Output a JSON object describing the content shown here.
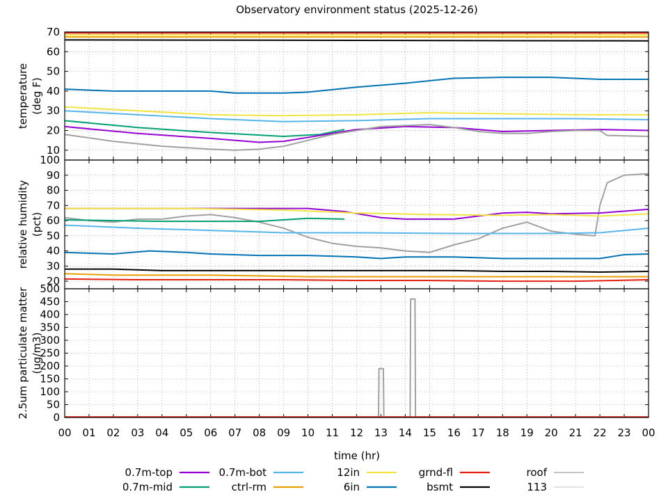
{
  "chart_data": {
    "title": "Observatory environment status (2025-12-26)",
    "xlabel": "time (hr)",
    "x_tick_labels": [
      "00",
      "01",
      "02",
      "03",
      "04",
      "05",
      "06",
      "07",
      "08",
      "09",
      "10",
      "11",
      "12",
      "13",
      "14",
      "15",
      "16",
      "17",
      "18",
      "19",
      "20",
      "21",
      "22",
      "23",
      "00"
    ],
    "xlim": [
      0,
      24
    ],
    "grid": true,
    "legend_position": "bottom",
    "legend": [
      {
        "name": "0.7m-top",
        "color": "#9400D3"
      },
      {
        "name": "0.7m-bot",
        "color": "#56B4E9"
      },
      {
        "name": "12in",
        "color": "#F0E442"
      },
      {
        "name": "grnd-fl",
        "color": "#E51E10"
      },
      {
        "name": "roof",
        "color": "#A0A0A0"
      },
      {
        "name": "0.7m-mid",
        "color": "#009E73"
      },
      {
        "name": "ctrl-rm",
        "color": "#E69F00"
      },
      {
        "name": "6in",
        "color": "#0072B2"
      },
      {
        "name": "bsmt",
        "color": "#000000"
      },
      {
        "name": "113",
        "color": "#D0D0D0"
      }
    ],
    "panels": [
      {
        "type": "line",
        "ylabel": [
          "temperature",
          "(deg F)"
        ],
        "ylim": [
          5,
          70
        ],
        "yticks": [
          10,
          20,
          30,
          40,
          50,
          60,
          70
        ],
        "series": [
          {
            "name": "grnd-fl",
            "color": "#E51E10",
            "x": [
              0,
              24
            ],
            "y": [
              69.5,
              69.5
            ]
          },
          {
            "name": "12in",
            "color": "#F0E442",
            "x": [
              0,
              24
            ],
            "y": [
              68.5,
              68.5
            ]
          },
          {
            "name": "ctrl-rm",
            "color": "#E69F00",
            "x": [
              0,
              24
            ],
            "y": [
              67.5,
              67.5
            ]
          },
          {
            "name": "bsmt",
            "color": "#000000",
            "x": [
              0,
              24
            ],
            "y": [
              66,
              65.5
            ]
          },
          {
            "name": "6in",
            "color": "#0072B2",
            "x": [
              0,
              2,
              4,
              6,
              7,
              9,
              10,
              12,
              14,
              16,
              18,
              20,
              22,
              24
            ],
            "y": [
              41,
              40,
              40,
              40,
              39,
              39,
              39.5,
              42,
              44,
              46.5,
              47,
              47,
              46,
              46
            ]
          },
          {
            "name": "12in",
            "color": "#F0E442",
            "x": [
              0,
              3,
              6,
              9,
              12,
              15,
              18,
              21,
              24
            ],
            "y": [
              32,
              30,
              28,
              27.5,
              28,
              29,
              28.5,
              28,
              28
            ]
          },
          {
            "name": "0.7m-bot",
            "color": "#56B4E9",
            "x": [
              0,
              3,
              6,
              9,
              12,
              15,
              18,
              21,
              24
            ],
            "y": [
              30,
              28,
              26,
              24.5,
              25,
              26,
              26,
              26,
              25.5
            ]
          },
          {
            "name": "0.7m-mid",
            "color": "#009E73",
            "x": [
              0,
              3,
              6,
              9,
              10.5,
              11.5
            ],
            "y": [
              25,
              21.5,
              19,
              17,
              18,
              20.5
            ]
          },
          {
            "name": "0.7m-top",
            "color": "#9400D3",
            "x": [
              0,
              3,
              6,
              8,
              9,
              10,
              11,
              12,
              14,
              16,
              18,
              20,
              22,
              24
            ],
            "y": [
              22,
              18.5,
              16,
              14,
              14.5,
              16.5,
              18.5,
              20.5,
              22,
              21.5,
              19.5,
              20,
              20.5,
              20
            ]
          },
          {
            "name": "roof",
            "color": "#A0A0A0",
            "x": [
              0,
              2,
              4,
              6,
              7,
              8,
              9,
              10,
              11,
              12,
              13,
              14,
              15,
              16,
              17,
              18,
              19,
              20,
              21,
              22,
              22.3,
              24
            ],
            "y": [
              18,
              14.5,
              12,
              10.5,
              10,
              10.5,
              12,
              15,
              18,
              20,
              22,
              22.5,
              23,
              21.5,
              19.5,
              18.5,
              18.5,
              19.5,
              20,
              20,
              17.5,
              17
            ]
          }
        ]
      },
      {
        "type": "line",
        "ylabel": [
          "relative humidity",
          "(pct)"
        ],
        "ylim": [
          15,
          100
        ],
        "yticks": [
          20,
          30,
          40,
          50,
          60,
          70,
          80,
          90,
          100
        ],
        "series": [
          {
            "name": "roof",
            "color": "#A0A0A0",
            "x": [
              0,
              1,
              2,
              3,
              4,
              5,
              6,
              7,
              8,
              9,
              10,
              11,
              12,
              13,
              14,
              15,
              16,
              17,
              18,
              19,
              20,
              21,
              21.8,
              22,
              22.3,
              23,
              24
            ],
            "y": [
              62,
              60,
              59,
              61,
              61,
              63,
              64,
              62,
              59,
              55,
              49,
              45,
              43,
              42,
              40,
              39,
              44,
              48,
              55,
              59,
              53,
              51,
              50,
              70,
              85,
              90,
              91
            ]
          },
          {
            "name": "0.7m-top",
            "color": "#9400D3",
            "x": [
              0,
              5,
              10,
              11.5,
              13,
              14,
              16,
              17,
              18,
              19,
              20,
              22,
              24
            ],
            "y": [
              68,
              68,
              68,
              66,
              62,
              61,
              61,
              63,
              65,
              65.5,
              64.5,
              65,
              67.5
            ]
          },
          {
            "name": "12in",
            "color": "#F0E442",
            "x": [
              0,
              5,
              9,
              12,
              15,
              18,
              20,
              22,
              24
            ],
            "y": [
              68,
              68,
              67,
              65,
              64,
              63.5,
              64,
              63,
              64.5
            ]
          },
          {
            "name": "0.7m-mid",
            "color": "#009E73",
            "x": [
              0,
              4,
              8,
              10,
              11.5
            ],
            "y": [
              60.5,
              59.5,
              59.5,
              61.5,
              61
            ]
          },
          {
            "name": "0.7m-bot",
            "color": "#56B4E9",
            "x": [
              0,
              3,
              7,
              9,
              12,
              16,
              20,
              22,
              23,
              24
            ],
            "y": [
              57,
              55,
              53,
              52,
              52,
              51.5,
              51.5,
              52,
              53.5,
              55
            ]
          },
          {
            "name": "6in",
            "color": "#0072B2",
            "x": [
              0,
              2,
              3.5,
              5,
              6,
              8,
              10,
              12,
              13,
              14,
              16,
              18,
              20,
              22,
              23,
              24
            ],
            "y": [
              39,
              38,
              40,
              39,
              38,
              37,
              37,
              36,
              35,
              36,
              36,
              35,
              35,
              35,
              37.5,
              38
            ]
          },
          {
            "name": "bsmt",
            "color": "#000000",
            "x": [
              0,
              2,
              4,
              6,
              8,
              10,
              12,
              14,
              16,
              18,
              20,
              22,
              24
            ],
            "y": [
              28,
              28,
              27,
              27,
              27,
              27,
              27,
              27,
              27,
              26.5,
              26.5,
              26,
              26.5
            ]
          },
          {
            "name": "ctrl-rm",
            "color": "#E69F00",
            "x": [
              0,
              2,
              4,
              6,
              8,
              10,
              12,
              14,
              16,
              18,
              20,
              22,
              24
            ],
            "y": [
              25,
              24,
              24,
              24,
              23.5,
              23,
              23,
              23,
              23,
              23,
              23,
              23,
              23
            ]
          },
          {
            "name": "grnd-fl",
            "color": "#E51E10",
            "x": [
              0,
              3,
              6,
              9,
              12,
              15,
              18,
              21,
              24
            ],
            "y": [
              21.5,
              21,
              21,
              21,
              20.5,
              20.5,
              20,
              20,
              21
            ]
          }
        ]
      },
      {
        "type": "line",
        "ylabel": [
          "2.5um particulate matter",
          "(ug/m3)"
        ],
        "ylim": [
          0,
          500
        ],
        "yticks": [
          0,
          50,
          100,
          150,
          200,
          250,
          300,
          350,
          400,
          450,
          500
        ],
        "series": [
          {
            "name": "roof",
            "color": "#A0A0A0",
            "x": [
              0,
              12.9,
              12.92,
              13.1,
              13.12,
              14.2,
              14.22,
              14.4,
              14.42,
              24
            ],
            "y": [
              2,
              2,
              190,
              190,
              2,
              2,
              460,
              460,
              2,
              2
            ]
          },
          {
            "name": "grnd-fl",
            "color": "#E51E10",
            "x": [
              0,
              24
            ],
            "y": [
              2,
              2
            ]
          }
        ]
      }
    ]
  }
}
